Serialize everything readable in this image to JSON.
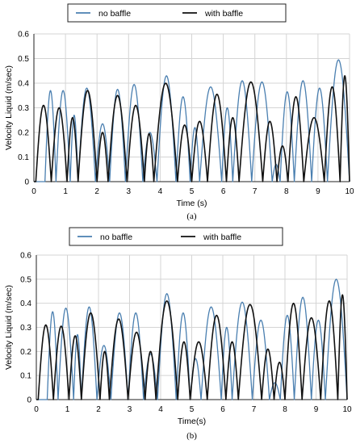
{
  "chart_data": [
    {
      "type": "line",
      "caption": "(a)",
      "xlabel": "Time (s)",
      "ylabel": "Velocity Liquid  (m/sec)",
      "xlim": [
        0,
        10
      ],
      "ylim": [
        0,
        0.6
      ],
      "x_ticks": [
        "0",
        "1",
        "2",
        "3",
        "4",
        "5",
        "6",
        "7",
        "8",
        "9",
        "10"
      ],
      "y_ticks": [
        "0",
        "0.1",
        "0.2",
        "0.3",
        "0.4",
        "0.5",
        "0.6"
      ],
      "grid": true,
      "legend_position": "top",
      "series": [
        {
          "name": "no baffle",
          "color": "#4a7fb0",
          "arches": [
            [
              0.0,
              0.35,
              0.0
            ],
            [
              0.35,
              0.7,
              0.37
            ],
            [
              0.7,
              1.15,
              0.37
            ],
            [
              1.15,
              1.4,
              0.27
            ],
            [
              1.4,
              1.95,
              0.38
            ],
            [
              1.95,
              2.4,
              0.235
            ],
            [
              2.4,
              2.9,
              0.375
            ],
            [
              2.9,
              3.45,
              0.395
            ],
            [
              3.45,
              3.9,
              0.2
            ],
            [
              3.9,
              4.5,
              0.43
            ],
            [
              4.5,
              4.95,
              0.345
            ],
            [
              4.95,
              5.25,
              0.22
            ],
            [
              5.25,
              5.95,
              0.385
            ],
            [
              5.95,
              6.3,
              0.3
            ],
            [
              6.3,
              6.9,
              0.41
            ],
            [
              6.9,
              7.55,
              0.405
            ],
            [
              7.55,
              7.8,
              0.07
            ],
            [
              7.8,
              8.25,
              0.365
            ],
            [
              8.25,
              8.8,
              0.41
            ],
            [
              8.8,
              9.3,
              0.38
            ],
            [
              9.3,
              10.0,
              0.495
            ]
          ]
        },
        {
          "name": "with baffle",
          "color": "#111111",
          "arches": [
            [
              0.0,
              0.06,
              0.0
            ],
            [
              0.06,
              0.55,
              0.31
            ],
            [
              0.55,
              1.05,
              0.3
            ],
            [
              1.05,
              1.4,
              0.26
            ],
            [
              1.4,
              2.0,
              0.37
            ],
            [
              2.0,
              2.35,
              0.2
            ],
            [
              2.35,
              2.95,
              0.35
            ],
            [
              2.95,
              3.5,
              0.31
            ],
            [
              3.5,
              3.8,
              0.195
            ],
            [
              3.8,
              4.55,
              0.4
            ],
            [
              4.55,
              5.0,
              0.23
            ],
            [
              5.0,
              5.5,
              0.245
            ],
            [
              5.5,
              6.1,
              0.355
            ],
            [
              6.1,
              6.5,
              0.26
            ],
            [
              6.5,
              7.25,
              0.405
            ],
            [
              7.25,
              7.7,
              0.245
            ],
            [
              7.7,
              8.05,
              0.145
            ],
            [
              8.05,
              8.55,
              0.345
            ],
            [
              8.55,
              9.2,
              0.26
            ],
            [
              9.2,
              9.7,
              0.385
            ],
            [
              9.7,
              10.0,
              0.43
            ]
          ]
        }
      ]
    },
    {
      "type": "line",
      "caption": "(b)",
      "xlabel": "Time(s)",
      "ylabel": "Velocity Liquid  (m/sec)",
      "xlim": [
        0,
        10
      ],
      "ylim": [
        0,
        0.6
      ],
      "x_ticks": [
        "0",
        "1",
        "2",
        "3",
        "4",
        "5",
        "6",
        "7",
        "8",
        "9",
        "10"
      ],
      "y_ticks": [
        "0",
        "0.1",
        "0.2",
        "0.3",
        "0.4",
        "0.5",
        "0.6"
      ],
      "grid": true,
      "legend_position": "top",
      "series": [
        {
          "name": "no baffle",
          "color": "#4a7fb0",
          "arches": [
            [
              0.0,
              0.35,
              0.0
            ],
            [
              0.35,
              0.7,
              0.365
            ],
            [
              0.7,
              1.2,
              0.38
            ],
            [
              1.2,
              1.45,
              0.27
            ],
            [
              1.45,
              1.95,
              0.385
            ],
            [
              1.95,
              2.4,
              0.225
            ],
            [
              2.4,
              2.95,
              0.36
            ],
            [
              2.95,
              3.45,
              0.36
            ],
            [
              3.45,
              3.9,
              0.19
            ],
            [
              3.9,
              4.5,
              0.44
            ],
            [
              4.5,
              4.95,
              0.36
            ],
            [
              4.95,
              5.3,
              0.17
            ],
            [
              5.3,
              5.95,
              0.385
            ],
            [
              5.95,
              6.3,
              0.3
            ],
            [
              6.3,
              6.95,
              0.405
            ],
            [
              6.95,
              7.5,
              0.33
            ],
            [
              7.5,
              7.85,
              0.07
            ],
            [
              7.85,
              8.3,
              0.35
            ],
            [
              8.3,
              8.85,
              0.425
            ],
            [
              8.85,
              9.3,
              0.33
            ],
            [
              9.3,
              10.0,
              0.5
            ]
          ]
        },
        {
          "name": "with baffle",
          "color": "#111111",
          "arches": [
            [
              0.0,
              0.06,
              0.0
            ],
            [
              0.06,
              0.55,
              0.31
            ],
            [
              0.55,
              1.05,
              0.305
            ],
            [
              1.05,
              1.45,
              0.265
            ],
            [
              1.45,
              2.05,
              0.36
            ],
            [
              2.05,
              2.35,
              0.2
            ],
            [
              2.35,
              2.95,
              0.335
            ],
            [
              2.95,
              3.5,
              0.28
            ],
            [
              3.5,
              3.85,
              0.2
            ],
            [
              3.85,
              4.55,
              0.41
            ],
            [
              4.55,
              4.95,
              0.24
            ],
            [
              4.95,
              5.5,
              0.24
            ],
            [
              5.5,
              6.1,
              0.35
            ],
            [
              6.1,
              6.5,
              0.24
            ],
            [
              6.5,
              7.25,
              0.395
            ],
            [
              7.25,
              7.65,
              0.21
            ],
            [
              7.65,
              8.0,
              0.155
            ],
            [
              8.0,
              8.55,
              0.4
            ],
            [
              8.55,
              9.15,
              0.34
            ],
            [
              9.15,
              9.7,
              0.41
            ],
            [
              9.7,
              10.0,
              0.435
            ]
          ]
        }
      ]
    }
  ]
}
